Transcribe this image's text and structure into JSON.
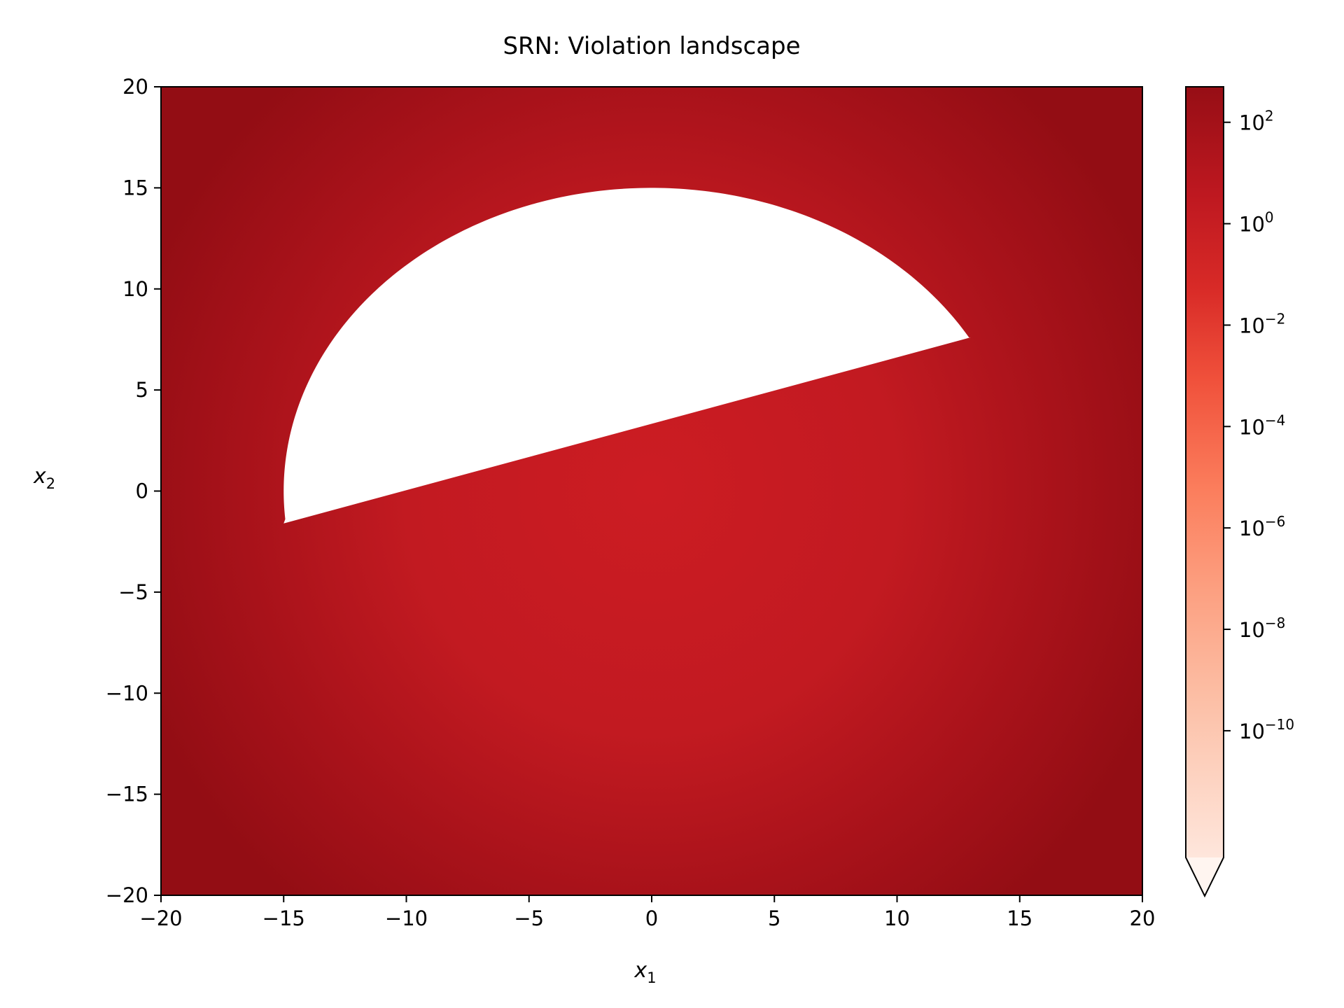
{
  "chart_data": {
    "type": "heatmap",
    "title": "SRN: Violation landscape",
    "xlabel": "x",
    "xlabel_sub": "1",
    "ylabel": "x",
    "ylabel_sub": "2",
    "xlim": [
      -20,
      20
    ],
    "ylim": [
      -20,
      20
    ],
    "x_ticks": [
      -20,
      -15,
      -10,
      -5,
      0,
      5,
      10,
      15,
      20
    ],
    "x_tick_labels": [
      "−20",
      "−15",
      "−10",
      "−5",
      "0",
      "5",
      "10",
      "15",
      "20"
    ],
    "y_ticks": [
      20,
      15,
      10,
      5,
      0,
      -5,
      -10,
      -15,
      -20
    ],
    "y_tick_labels": [
      "20",
      "15",
      "10",
      "5",
      "0",
      "−5",
      "−10",
      "−15",
      "−20"
    ],
    "grid": false,
    "feasible_region": {
      "circle_center": [
        0,
        0
      ],
      "circle_radius": 15,
      "line": {
        "through": [
          -15,
          -1.6
        ],
        "to": [
          13,
          7.6
        ]
      },
      "fill": "#ffffff"
    },
    "colorbar": {
      "scale": "log",
      "colormap": "Reds",
      "extend": "min",
      "range_exponents": [
        -12.5,
        2.7
      ],
      "ticks": [
        {
          "exp": 2,
          "base": "10",
          "sup": "2"
        },
        {
          "exp": 0,
          "base": "10",
          "sup": "0"
        },
        {
          "exp": -2,
          "base": "10",
          "sup": "−2"
        },
        {
          "exp": -4,
          "base": "10",
          "sup": "−4"
        },
        {
          "exp": -6,
          "base": "10",
          "sup": "−6"
        },
        {
          "exp": -8,
          "base": "10",
          "sup": "−8"
        },
        {
          "exp": -10,
          "base": "10",
          "sup": "−10"
        }
      ]
    },
    "colors": {
      "dark": "#960e15",
      "mid": "#c71b22",
      "light_red": "#fb6a4a",
      "pale": "#fee0d2"
    }
  }
}
